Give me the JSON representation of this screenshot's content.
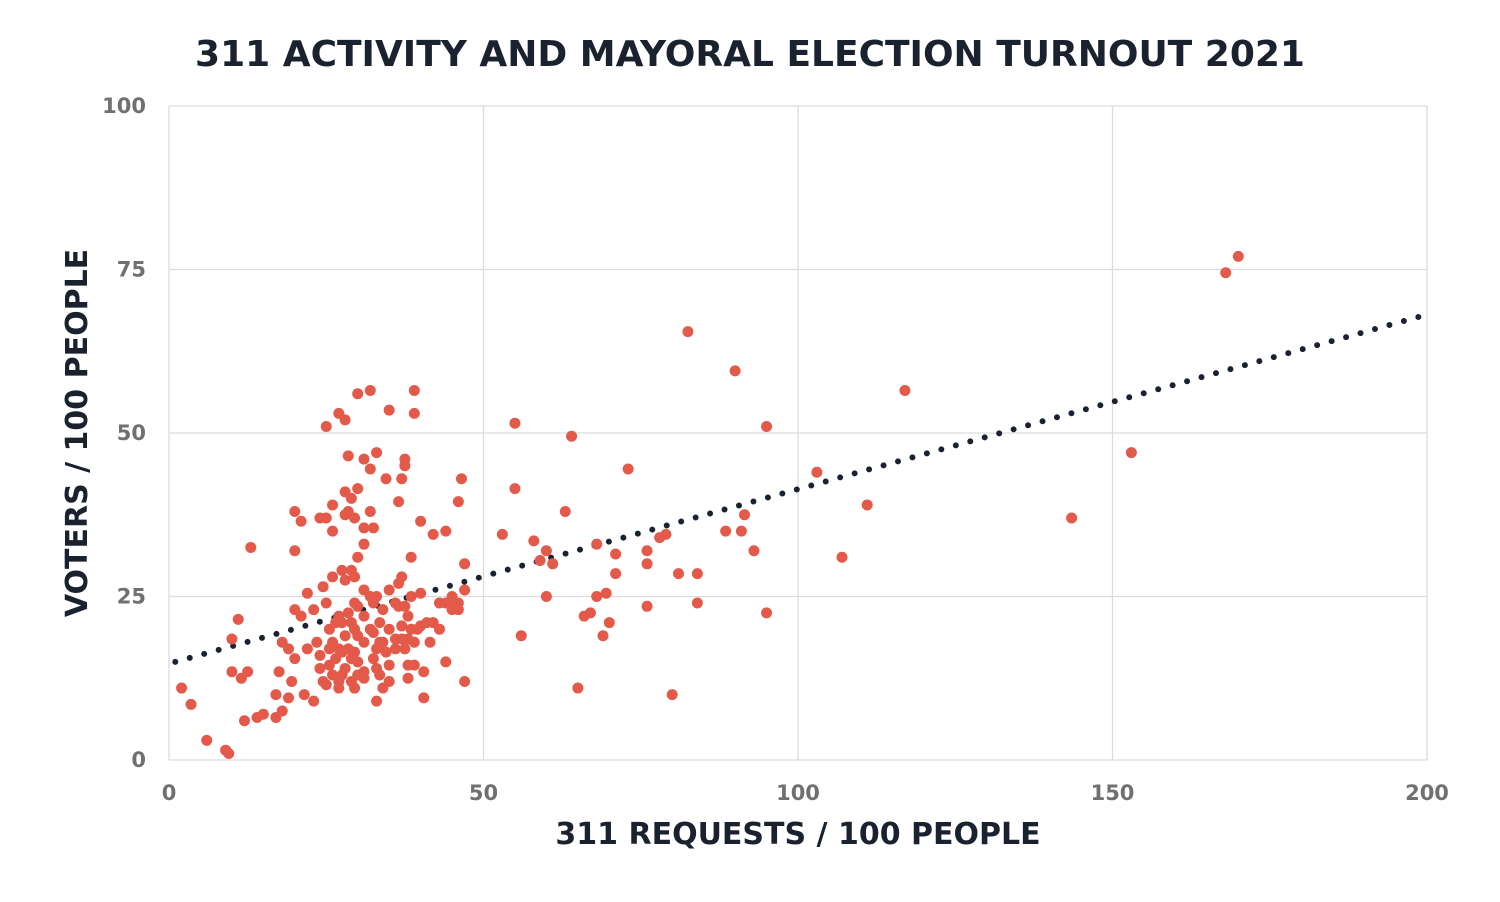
{
  "chart_data": {
    "type": "scatter",
    "title": "311 ACTIVITY AND MAYORAL ELECTION TURNOUT 2021",
    "xlabel": "311 REQUESTS / 100 PEOPLE",
    "ylabel": "VOTERS / 100 PEOPLE",
    "xlim": [
      0,
      200
    ],
    "ylim": [
      0,
      100
    ],
    "x_ticks": [
      "0",
      "50",
      "100",
      "150",
      "200"
    ],
    "y_ticks": [
      "0",
      "25",
      "50",
      "75",
      "100"
    ],
    "grid": true,
    "legend": "none",
    "colors": {
      "points": "#e35a4a",
      "trend": "#1a2230",
      "title": "#1a2230",
      "tick": "#707070",
      "grid": "#dcdcdc"
    },
    "trendline": {
      "style": "dotted",
      "start": [
        1,
        15
      ],
      "end": [
        200,
        68.1
      ]
    },
    "points": [
      [
        2,
        11
      ],
      [
        3.5,
        8.5
      ],
      [
        6,
        3
      ],
      [
        9,
        1.5
      ],
      [
        9.5,
        1
      ],
      [
        10,
        13.5
      ],
      [
        10,
        18.5
      ],
      [
        11,
        21.5
      ],
      [
        11.5,
        12.5
      ],
      [
        12,
        6
      ],
      [
        12.5,
        13.5
      ],
      [
        13,
        32.5
      ],
      [
        14,
        6.5
      ],
      [
        15,
        7
      ],
      [
        17,
        6.5
      ],
      [
        17,
        10
      ],
      [
        17.5,
        13.5
      ],
      [
        18,
        18
      ],
      [
        18,
        7.5
      ],
      [
        19,
        17
      ],
      [
        19,
        9.5
      ],
      [
        19.5,
        12
      ],
      [
        20,
        23
      ],
      [
        20,
        32
      ],
      [
        20,
        15.5
      ],
      [
        20,
        38
      ],
      [
        21,
        22
      ],
      [
        21,
        36.5
      ],
      [
        21.5,
        10
      ],
      [
        22,
        25.5
      ],
      [
        22,
        17
      ],
      [
        23,
        9
      ],
      [
        23,
        23
      ],
      [
        23.5,
        18
      ],
      [
        24,
        37
      ],
      [
        24,
        16
      ],
      [
        24,
        14
      ],
      [
        24.5,
        26.5
      ],
      [
        24.5,
        12
      ],
      [
        25,
        37
      ],
      [
        25,
        24
      ],
      [
        25,
        11.5
      ],
      [
        25,
        51
      ],
      [
        25.5,
        20
      ],
      [
        25.5,
        17
      ],
      [
        25.5,
        14.5
      ],
      [
        26,
        35
      ],
      [
        26,
        28
      ],
      [
        26,
        18
      ],
      [
        26,
        13
      ],
      [
        26,
        39
      ],
      [
        26.5,
        21
      ],
      [
        26.5,
        15.5
      ],
      [
        27,
        53
      ],
      [
        27,
        22
      ],
      [
        27,
        17
      ],
      [
        27,
        12
      ],
      [
        27,
        11
      ],
      [
        27.5,
        29
      ],
      [
        27.5,
        21
      ],
      [
        27.5,
        16.5
      ],
      [
        27.5,
        13
      ],
      [
        28,
        52
      ],
      [
        28,
        41
      ],
      [
        28,
        37.5
      ],
      [
        28,
        27.5
      ],
      [
        28,
        19
      ],
      [
        28,
        14
      ],
      [
        28.5,
        46.5
      ],
      [
        28.5,
        38
      ],
      [
        28.5,
        22.5
      ],
      [
        28.5,
        17
      ],
      [
        29,
        40
      ],
      [
        29,
        29
      ],
      [
        29,
        21
      ],
      [
        29,
        15.5
      ],
      [
        29,
        12
      ],
      [
        29.5,
        37
      ],
      [
        29.5,
        28
      ],
      [
        29.5,
        24
      ],
      [
        29.5,
        20
      ],
      [
        29.5,
        16.5
      ],
      [
        29.5,
        11
      ],
      [
        30,
        56
      ],
      [
        30,
        41.5
      ],
      [
        30,
        31
      ],
      [
        30,
        23.5
      ],
      [
        30,
        19
      ],
      [
        30,
        15
      ],
      [
        30,
        13
      ],
      [
        31,
        46
      ],
      [
        31,
        35.5
      ],
      [
        31,
        33
      ],
      [
        31,
        26
      ],
      [
        31,
        22
      ],
      [
        31,
        18
      ],
      [
        31,
        13.5
      ],
      [
        31,
        12.5
      ],
      [
        32,
        56.5
      ],
      [
        32,
        44.5
      ],
      [
        32,
        38
      ],
      [
        32,
        25
      ],
      [
        32,
        20
      ],
      [
        32.5,
        35.5
      ],
      [
        32.5,
        24
      ],
      [
        32.5,
        19.5
      ],
      [
        32.5,
        15.5
      ],
      [
        33,
        47
      ],
      [
        33,
        25
      ],
      [
        33,
        17
      ],
      [
        33,
        14
      ],
      [
        33,
        9
      ],
      [
        33.5,
        21
      ],
      [
        33.5,
        18
      ],
      [
        33.5,
        13
      ],
      [
        34,
        23
      ],
      [
        34,
        18
      ],
      [
        34,
        11
      ],
      [
        34.5,
        43
      ],
      [
        34.5,
        16.5
      ],
      [
        35,
        53.5
      ],
      [
        35,
        26
      ],
      [
        35,
        20
      ],
      [
        35,
        14.5
      ],
      [
        35,
        12
      ],
      [
        36,
        24
      ],
      [
        36,
        18.5
      ],
      [
        36,
        17
      ],
      [
        36.5,
        39.5
      ],
      [
        36.5,
        27
      ],
      [
        36.5,
        23.5
      ],
      [
        37,
        43
      ],
      [
        37,
        28
      ],
      [
        37,
        20.5
      ],
      [
        37,
        18.5
      ],
      [
        37.5,
        46
      ],
      [
        37.5,
        45
      ],
      [
        37.5,
        23.5
      ],
      [
        37.5,
        17
      ],
      [
        38,
        22
      ],
      [
        38,
        18.5
      ],
      [
        38,
        14.5
      ],
      [
        38,
        12.5
      ],
      [
        38.5,
        31
      ],
      [
        38.5,
        25
      ],
      [
        38.5,
        20
      ],
      [
        39,
        56.5
      ],
      [
        39,
        53
      ],
      [
        39,
        18
      ],
      [
        39,
        14.5
      ],
      [
        39.5,
        20
      ],
      [
        40,
        36.5
      ],
      [
        40,
        25.5
      ],
      [
        40,
        20.5
      ],
      [
        40.5,
        13.5
      ],
      [
        40.5,
        9.5
      ],
      [
        41,
        21
      ],
      [
        41.5,
        18
      ],
      [
        42,
        34.5
      ],
      [
        42,
        21
      ],
      [
        43,
        20
      ],
      [
        43,
        24
      ],
      [
        44,
        35
      ],
      [
        44,
        24
      ],
      [
        44,
        15
      ],
      [
        45,
        25
      ],
      [
        45,
        23.5
      ],
      [
        45,
        23
      ],
      [
        46,
        24
      ],
      [
        46,
        23
      ],
      [
        46,
        39.5
      ],
      [
        46.5,
        43
      ],
      [
        47,
        12
      ],
      [
        47,
        30
      ],
      [
        47,
        26
      ],
      [
        53,
        34.5
      ],
      [
        55,
        41.5
      ],
      [
        55,
        51.5
      ],
      [
        56,
        19
      ],
      [
        58,
        33.5
      ],
      [
        59,
        30.5
      ],
      [
        60,
        25
      ],
      [
        60,
        32
      ],
      [
        61,
        30
      ],
      [
        63,
        38
      ],
      [
        64,
        49.5
      ],
      [
        65,
        11
      ],
      [
        66,
        22
      ],
      [
        67,
        22.5
      ],
      [
        68,
        25
      ],
      [
        68,
        33
      ],
      [
        69,
        19
      ],
      [
        69.5,
        25.5
      ],
      [
        70,
        21
      ],
      [
        71,
        28.5
      ],
      [
        71,
        31.5
      ],
      [
        73,
        44.5
      ],
      [
        76,
        32
      ],
      [
        76,
        30
      ],
      [
        76,
        23.5
      ],
      [
        78,
        34
      ],
      [
        79,
        34.5
      ],
      [
        80,
        10
      ],
      [
        81,
        28.5
      ],
      [
        82.5,
        65.5
      ],
      [
        84,
        24
      ],
      [
        84,
        28.5
      ],
      [
        88.5,
        35
      ],
      [
        90,
        59.5
      ],
      [
        91,
        35
      ],
      [
        91.5,
        37.5
      ],
      [
        93,
        32
      ],
      [
        95,
        51
      ],
      [
        95,
        22.5
      ],
      [
        103,
        44
      ],
      [
        107,
        31
      ],
      [
        111,
        39
      ],
      [
        117,
        56.5
      ],
      [
        143.5,
        37
      ],
      [
        153,
        47
      ],
      [
        168,
        74.5
      ],
      [
        170,
        77
      ]
    ]
  }
}
